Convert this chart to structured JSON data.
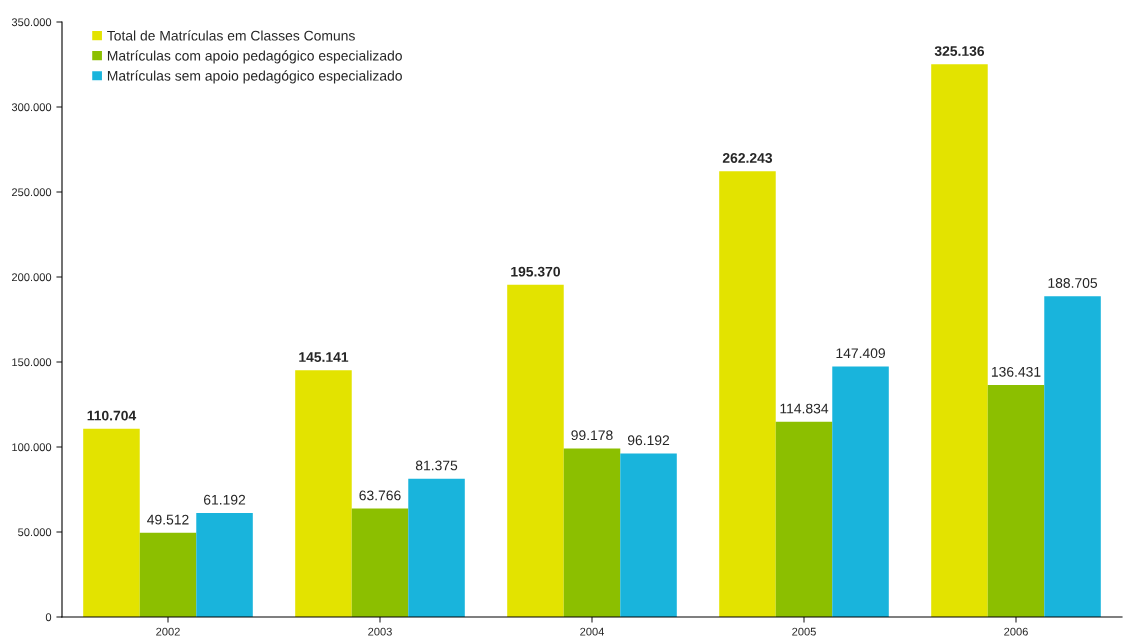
{
  "chart_data": {
    "type": "bar",
    "categories": [
      "2002",
      "2003",
      "2004",
      "2005",
      "2006"
    ],
    "series": [
      {
        "name": "Total de Matrículas em Classes Comuns",
        "color": "#e3e300",
        "values": [
          110704,
          145141,
          195370,
          262243,
          325136
        ],
        "value_labels": [
          "110.704",
          "145.141",
          "195.370",
          "262.243",
          "325.136"
        ]
      },
      {
        "name": "Matrículas com apoio pedagógico especializado",
        "color": "#8cbf00",
        "values": [
          49512,
          63766,
          99178,
          114834,
          136431
        ],
        "value_labels": [
          "49.512",
          "63.766",
          "99.178",
          "114.834",
          "136.431"
        ]
      },
      {
        "name": "Matrículas sem apoio pedagógico especializado",
        "color": "#19b4dc",
        "values": [
          61192,
          81375,
          96192,
          147409,
          188705
        ],
        "value_labels": [
          "61.192",
          "81.375",
          "96.192",
          "147.409",
          "188.705"
        ]
      }
    ],
    "ylim": [
      0,
      350000
    ],
    "yticks": [
      0,
      {
        "value": 50000,
        "label": "50.000"
      },
      {
        "value": 100000,
        "label": "100.000"
      },
      {
        "value": 150000,
        "label": "150.000"
      },
      {
        "value": 200000,
        "label": "200.000"
      },
      {
        "value": 250000,
        "label": "250.000"
      },
      {
        "value": 300000,
        "label": "300.000"
      },
      {
        "value": 350000,
        "label": "350.000"
      }
    ],
    "grid": false,
    "legend": "top left"
  }
}
